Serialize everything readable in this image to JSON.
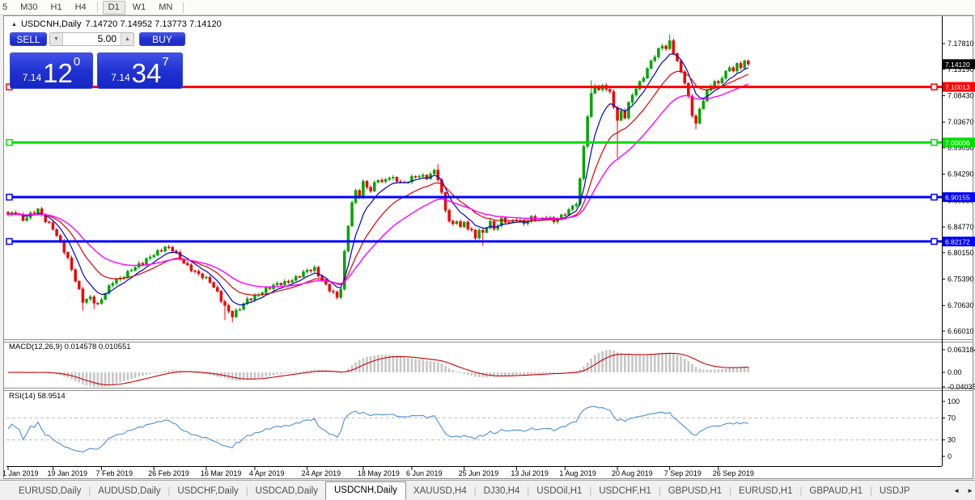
{
  "toolbar": {
    "timeframes": [
      "5",
      "M30",
      "H1",
      "H4",
      "D1",
      "W1",
      "MN"
    ],
    "active_timeframe": "D1"
  },
  "chart": {
    "collapse_icon": "▲",
    "symbol": "USDCNH,Daily",
    "ohlc": "7.14720 7.14952 7.13773 7.14120"
  },
  "trade_panel": {
    "sell_label": "SELL",
    "buy_label": "BUY",
    "volume": "5.00",
    "volume_down_icon": "▼",
    "volume_up_icon": "▲",
    "sell_price_prefix": "7.14",
    "sell_price_big": "12",
    "sell_price_sup": "0",
    "buy_price_prefix": "7.14",
    "buy_price_big": "34",
    "buy_price_sup": "7"
  },
  "indicators": {
    "macd_label": "MACD(12,26,9) 0.014578 0.010551",
    "rsi_label": "RSI(14) 58.9514"
  },
  "chart_data": {
    "type": "candlestick",
    "symbol": "USDCNH",
    "timeframe": "Daily",
    "current_price": "7.14120",
    "last_bar_ohlc": [
      7.1472,
      7.14952,
      7.13773,
      7.1412
    ],
    "price_axis_labels": [
      "7.17810",
      "7.13190",
      "7.08430",
      "7.03670",
      "6.99050",
      "6.94290",
      "6.89530",
      "6.84770",
      "6.80150",
      "6.75390",
      "6.70630",
      "6.66010"
    ],
    "price_axis_values": [
      7.1781,
      7.1319,
      7.0843,
      7.0367,
      6.9905,
      6.9429,
      6.8953,
      6.8477,
      6.8015,
      6.7539,
      6.7063,
      6.6601
    ],
    "levels": [
      {
        "label": "7.10013",
        "price": 7.10013,
        "color": "#ff0000"
      },
      {
        "label": "7.00006",
        "price": 7.00006,
        "color": "#00dd00"
      },
      {
        "label": "6.90155",
        "price": 6.90155,
        "color": "#0000ff"
      },
      {
        "label": "6.82172",
        "price": 6.82172,
        "color": "#0000ff"
      }
    ],
    "date_ticks": [
      {
        "label": "1 Jan 2019",
        "bar": 0
      },
      {
        "label": "19 Jan 2019",
        "bar": 12
      },
      {
        "label": "7 Feb 2019",
        "bar": 25
      },
      {
        "label": "26 Feb 2019",
        "bar": 39
      },
      {
        "label": "16 Mar 2019",
        "bar": 53
      },
      {
        "label": "4 Apr 2019",
        "bar": 66
      },
      {
        "label": "24 Apr 2019",
        "bar": 80
      },
      {
        "label": "18 May 2019",
        "bar": 95
      },
      {
        "label": "6 Jun 2019",
        "bar": 108
      },
      {
        "label": "25 Jun 2019",
        "bar": 122
      },
      {
        "label": "13 Jul 2019",
        "bar": 136
      },
      {
        "label": "1 Aug 2019",
        "bar": 149
      },
      {
        "label": "20 Aug 2019",
        "bar": 163
      },
      {
        "label": "7 Sep 2019",
        "bar": 177
      },
      {
        "label": "26 Sep 2019",
        "bar": 190
      }
    ],
    "bar_count": 199,
    "close_anchors": [
      [
        0,
        6.868
      ],
      [
        2,
        6.874
      ],
      [
        4,
        6.862
      ],
      [
        6,
        6.872
      ],
      [
        8,
        6.878
      ],
      [
        10,
        6.858
      ],
      [
        12,
        6.846
      ],
      [
        14,
        6.822
      ],
      [
        16,
        6.79
      ],
      [
        18,
        6.75
      ],
      [
        20,
        6.714
      ],
      [
        22,
        6.722
      ],
      [
        24,
        6.708
      ],
      [
        26,
        6.728
      ],
      [
        28,
        6.748
      ],
      [
        30,
        6.756
      ],
      [
        33,
        6.772
      ],
      [
        36,
        6.782
      ],
      [
        39,
        6.8
      ],
      [
        42,
        6.812
      ],
      [
        44,
        6.806
      ],
      [
        46,
        6.79
      ],
      [
        48,
        6.778
      ],
      [
        50,
        6.768
      ],
      [
        52,
        6.758
      ],
      [
        54,
        6.748
      ],
      [
        56,
        6.73
      ],
      [
        58,
        6.706
      ],
      [
        60,
        6.688
      ],
      [
        62,
        6.7
      ],
      [
        64,
        6.716
      ],
      [
        66,
        6.724
      ],
      [
        68,
        6.732
      ],
      [
        70,
        6.738
      ],
      [
        72,
        6.744
      ],
      [
        74,
        6.748
      ],
      [
        77,
        6.757
      ],
      [
        80,
        6.768
      ],
      [
        82,
        6.772
      ],
      [
        84,
        6.752
      ],
      [
        86,
        6.736
      ],
      [
        88,
        6.72
      ],
      [
        89,
        6.736
      ],
      [
        90,
        6.8
      ],
      [
        91,
        6.852
      ],
      [
        92,
        6.892
      ],
      [
        93,
        6.914
      ],
      [
        94,
        6.906
      ],
      [
        95,
        6.928
      ],
      [
        96,
        6.92
      ],
      [
        97,
        6.912
      ],
      [
        98,
        6.924
      ],
      [
        99,
        6.934
      ],
      [
        100,
        6.928
      ],
      [
        102,
        6.94
      ],
      [
        104,
        6.932
      ],
      [
        106,
        6.924
      ],
      [
        108,
        6.936
      ],
      [
        110,
        6.942
      ],
      [
        112,
        6.938
      ],
      [
        114,
        6.948
      ],
      [
        115,
        6.934
      ],
      [
        116,
        6.906
      ],
      [
        117,
        6.878
      ],
      [
        118,
        6.86
      ],
      [
        119,
        6.852
      ],
      [
        120,
        6.862
      ],
      [
        121,
        6.848
      ],
      [
        122,
        6.856
      ],
      [
        123,
        6.846
      ],
      [
        124,
        6.838
      ],
      [
        125,
        6.828
      ],
      [
        126,
        6.842
      ],
      [
        127,
        6.836
      ],
      [
        128,
        6.85
      ],
      [
        129,
        6.858
      ],
      [
        130,
        6.845
      ],
      [
        131,
        6.852
      ],
      [
        132,
        6.86
      ],
      [
        134,
        6.854
      ],
      [
        136,
        6.862
      ],
      [
        138,
        6.856
      ],
      [
        140,
        6.864
      ],
      [
        142,
        6.858
      ],
      [
        144,
        6.866
      ],
      [
        146,
        6.86
      ],
      [
        148,
        6.868
      ],
      [
        150,
        6.876
      ],
      [
        151,
        6.884
      ],
      [
        152,
        6.89
      ],
      [
        153,
        6.932
      ],
      [
        154,
        6.996
      ],
      [
        155,
        7.048
      ],
      [
        156,
        7.088
      ],
      [
        157,
        7.105
      ],
      [
        158,
        7.092
      ],
      [
        159,
        7.102
      ],
      [
        160,
        7.096
      ],
      [
        161,
        7.088
      ],
      [
        162,
        7.066
      ],
      [
        163,
        7.04
      ],
      [
        164,
        7.058
      ],
      [
        165,
        7.048
      ],
      [
        166,
        7.07
      ],
      [
        167,
        7.086
      ],
      [
        168,
        7.096
      ],
      [
        169,
        7.106
      ],
      [
        170,
        7.118
      ],
      [
        171,
        7.132
      ],
      [
        172,
        7.148
      ],
      [
        173,
        7.158
      ],
      [
        174,
        7.168
      ],
      [
        175,
        7.176
      ],
      [
        176,
        7.168
      ],
      [
        177,
        7.18
      ],
      [
        178,
        7.162
      ],
      [
        179,
        7.144
      ],
      [
        180,
        7.128
      ],
      [
        181,
        7.11
      ],
      [
        182,
        7.082
      ],
      [
        183,
        7.052
      ],
      [
        184,
        7.034
      ],
      [
        185,
        7.058
      ],
      [
        186,
        7.076
      ],
      [
        187,
        7.09
      ],
      [
        188,
        7.102
      ],
      [
        189,
        7.112
      ],
      [
        190,
        7.106
      ],
      [
        191,
        7.12
      ],
      [
        192,
        7.128
      ],
      [
        193,
        7.134
      ],
      [
        194,
        7.13
      ],
      [
        195,
        7.138
      ],
      [
        196,
        7.135
      ],
      [
        197,
        7.1472
      ],
      [
        198,
        7.1412
      ]
    ],
    "wick_overrides": [
      {
        "i": 20,
        "low": 6.697
      },
      {
        "i": 23,
        "low": 6.7
      },
      {
        "i": 58,
        "low": 6.68
      },
      {
        "i": 60,
        "low": 6.676
      },
      {
        "i": 115,
        "high": 6.961
      },
      {
        "i": 127,
        "low": 6.814
      },
      {
        "i": 156,
        "high": 7.112
      },
      {
        "i": 163,
        "low": 6.972
      },
      {
        "i": 177,
        "high": 7.195
      },
      {
        "i": 184,
        "low": 7.024
      }
    ],
    "ma_periods": {
      "fast": 7,
      "mid": 16,
      "slow": 30
    },
    "macd_params": [
      12,
      26,
      9
    ],
    "rsi_period": 14,
    "macd_axis_labels": [
      "0.063184",
      "0.00",
      "-0.040355"
    ],
    "macd_axis_values": [
      0.06318,
      0,
      -0.04035
    ],
    "rsi_axis_labels": [
      "100",
      "70",
      "30",
      "0"
    ],
    "rsi_axis_values": [
      100,
      70,
      30,
      0
    ],
    "rsi_level_lines": [
      70,
      30
    ]
  },
  "colors": {
    "bull": "#00a400",
    "bear": "#f00000",
    "ma_fast": "#0000cc",
    "ma_mid": "#dd0000",
    "ma_slow": "#ff00ff",
    "macd_hist": "#c6c6c6",
    "macd_signal": "#cc0000",
    "rsi_line": "#4a8fd4",
    "current_badge": "#000000"
  },
  "tabs": {
    "items": [
      "EURUSD,Daily",
      "AUDUSD,Daily",
      "USDCHF,Daily",
      "USDCAD,Daily",
      "USDCNH,Daily",
      "XAUUSD,H4",
      "DJ30,H4",
      "USDOil,H1",
      "USDCHF,H1",
      "GBPUSD,H1",
      "EURUSD,H1",
      "GBPAUD,H1",
      "USDJP"
    ],
    "active": "USDCNH,Daily",
    "scroll_left_icon": "◄",
    "scroll_right_icon": "►"
  }
}
